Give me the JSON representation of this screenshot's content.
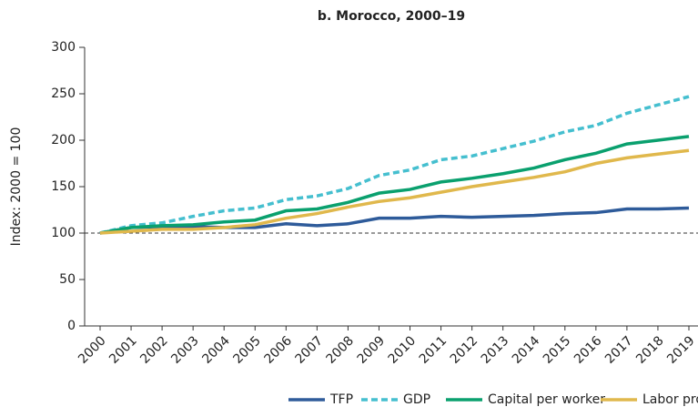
{
  "chart_data": {
    "type": "line",
    "title": "b. Morocco, 2000–19",
    "y_label": "Index: 2000 = 100",
    "categories": [
      "2000",
      "2001",
      "2002",
      "2003",
      "2004",
      "2005",
      "2006",
      "2007",
      "2008",
      "2009",
      "2010",
      "2011",
      "2012",
      "2013",
      "2014",
      "2015",
      "2016",
      "2017",
      "2018",
      "2019"
    ],
    "series": [
      {
        "name": "TFP",
        "color": "#2e5b9a",
        "dashed": false,
        "values": [
          100,
          106,
          107,
          107,
          106,
          106,
          110,
          108,
          110,
          116,
          116,
          118,
          117,
          118,
          119,
          121,
          122,
          126,
          126,
          127
        ]
      },
      {
        "name": "GDP",
        "color": "#45bfcf",
        "dashed": true,
        "values": [
          100,
          108,
          111,
          118,
          124,
          127,
          136,
          140,
          148,
          162,
          168,
          179,
          183,
          191,
          199,
          209,
          216,
          229,
          238,
          247
        ]
      },
      {
        "name": "Capital per worker",
        "color": "#0aa06e",
        "dashed": false,
        "values": [
          100,
          106,
          108,
          109,
          112,
          114,
          124,
          126,
          133,
          143,
          147,
          155,
          159,
          164,
          170,
          179,
          186,
          196,
          200,
          204
        ]
      },
      {
        "name": "Labor productivity",
        "color": "#e0b84c",
        "dashed": false,
        "values": [
          100,
          102,
          104,
          104,
          106,
          109,
          116,
          121,
          128,
          134,
          138,
          144,
          150,
          155,
          160,
          166,
          175,
          181,
          185,
          189
        ]
      }
    ],
    "ylim": [
      0,
      300
    ],
    "yticks": [
      0,
      50,
      100,
      150,
      200,
      250,
      300
    ],
    "reference_line": 100,
    "legend": "bottom"
  }
}
